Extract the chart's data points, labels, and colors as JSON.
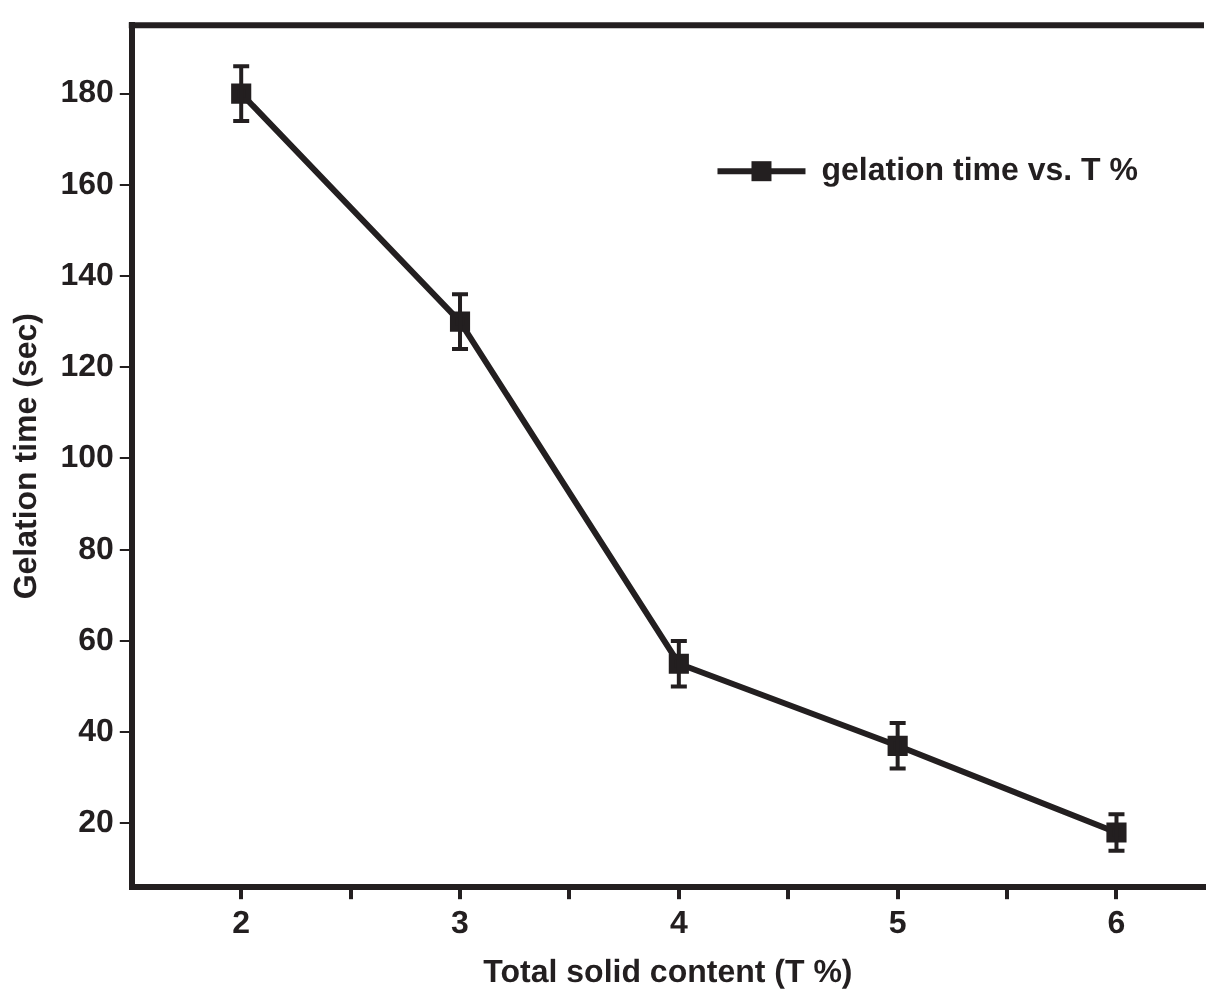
{
  "chart_data": {
    "type": "line",
    "xlabel": "Total solid content (T %)",
    "ylabel": "Gelation time (sec)",
    "x": [
      2,
      3,
      4,
      5,
      6
    ],
    "series": [
      {
        "name": "gelation time vs. T %",
        "color": "#231f20",
        "values": [
          180,
          130,
          55,
          37,
          18
        ],
        "errors": [
          6,
          6,
          5,
          5,
          4
        ]
      }
    ],
    "xlim": [
      1.5,
      6.4
    ],
    "xticks": [
      2,
      {
        "value": 2.5,
        "label": null
      },
      3,
      {
        "value": 3.5,
        "label": null
      },
      4,
      {
        "value": 4.5,
        "label": null
      },
      5,
      {
        "value": 5.5,
        "label": null
      },
      6
    ],
    "ylim": [
      6,
      195
    ],
    "yticks": [
      20,
      40,
      60,
      80,
      100,
      120,
      140,
      160,
      180
    ],
    "grid": false,
    "legend": "top right",
    "marker": "square",
    "line_style": "solid"
  }
}
